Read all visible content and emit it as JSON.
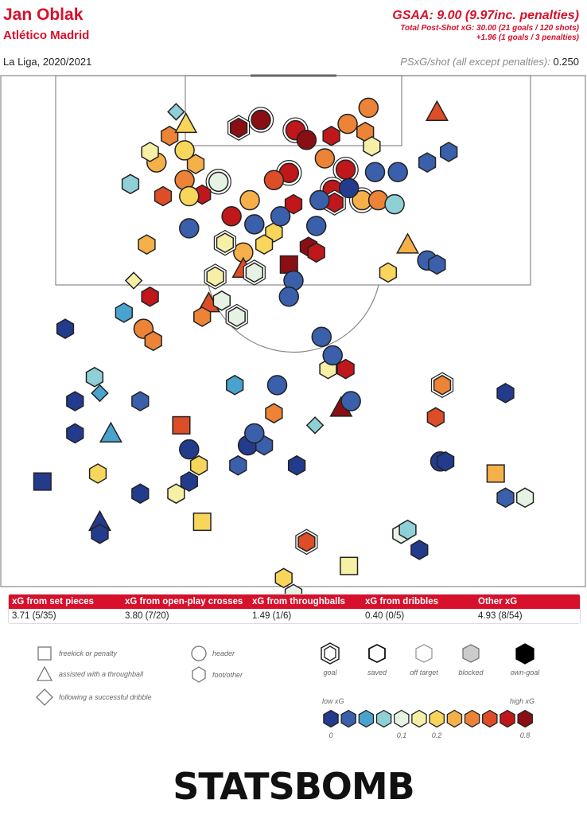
{
  "header": {
    "player": "Jan Oblak",
    "team": "Atlético Madrid",
    "competition": "La Liga, 2020/2021",
    "gsaa": "GSAA: 9.00 (9.97inc. penalties)",
    "psxg_total_line1": "Total Post-Shot xG: 30.00 (21 goals / 120 shots)",
    "psxg_total_line2": "+1.96 (1 goals / 3 penalties)",
    "psxg_per_shot_label": "PSxG/shot (all except penalties):",
    "psxg_per_shot_value": "0.250"
  },
  "xg_table": {
    "headers": [
      "xG from set pieces",
      "xG from open-play crosses",
      "xG from throughballs",
      "xG from dribbles",
      "Other xG"
    ],
    "values": [
      "3.71 (5/35)",
      "3.80 (7/20)",
      "1.49 (1/6)",
      "0.40 (0/5)",
      "4.93 (8/54)"
    ]
  },
  "legend": {
    "shapes": [
      {
        "icon": "square",
        "label": "freekick or penalty"
      },
      {
        "icon": "triangle",
        "label": "assisted with a throughball"
      },
      {
        "icon": "diamond",
        "label": "following a successful dribble"
      },
      {
        "icon": "circle",
        "label": "header"
      },
      {
        "icon": "hexagon",
        "label": "foot/other"
      }
    ],
    "outcomes": [
      "goal",
      "saved",
      "off target",
      "blocked",
      "own-goal"
    ],
    "xg_low": "low xG",
    "xg_high": "high xG",
    "xg_ticks": [
      "0",
      "0.1",
      "0.2",
      "0.8"
    ],
    "colorscale": [
      "#233b8c",
      "#3a5fab",
      "#4aa3cf",
      "#8fd0d6",
      "#e6f3e4",
      "#f6f0a6",
      "#f8d65c",
      "#f6b04a",
      "#ec8336",
      "#dc4d28",
      "#c0171a",
      "#8a0f14"
    ]
  },
  "logo": {
    "text": "STATSBOMB"
  },
  "chart_data": {
    "type": "scatter",
    "title": "",
    "description_units": "shot location in pitch metres (x: 0-80 across goal, y: distance from goal line); value = xG",
    "shots": [
      {
        "x": 40.0,
        "y": 5.5,
        "xg": 0.78,
        "shape": "circle",
        "outcome": "goal"
      },
      {
        "x": 36.6,
        "y": 6.5,
        "xg": 0.82,
        "shape": "hexagon",
        "outcome": "goal"
      },
      {
        "x": 45.3,
        "y": 6.8,
        "xg": 0.7,
        "shape": "circle",
        "outcome": "goal"
      },
      {
        "x": 47.0,
        "y": 8.0,
        "xg": 0.75,
        "shape": "circle",
        "outcome": "saved"
      },
      {
        "x": 50.8,
        "y": 7.5,
        "xg": 0.65,
        "shape": "hexagon",
        "outcome": "saved"
      },
      {
        "x": 53.3,
        "y": 6.0,
        "xg": 0.45,
        "shape": "circle",
        "outcome": "saved"
      },
      {
        "x": 49.8,
        "y": 10.3,
        "xg": 0.35,
        "shape": "circle",
        "outcome": "saved"
      },
      {
        "x": 53.0,
        "y": 11.7,
        "xg": 0.7,
        "shape": "circle",
        "outcome": "goal"
      },
      {
        "x": 44.3,
        "y": 12.1,
        "xg": 0.72,
        "shape": "circle",
        "outcome": "goal"
      },
      {
        "x": 51.0,
        "y": 14.2,
        "xg": 0.7,
        "shape": "circle",
        "outcome": "goal"
      },
      {
        "x": 47.3,
        "y": 21.3,
        "xg": 0.74,
        "shape": "hexagon",
        "outcome": "saved"
      },
      {
        "x": 51.3,
        "y": 15.8,
        "xg": 0.72,
        "shape": "hexagon",
        "outcome": "goal"
      },
      {
        "x": 45.0,
        "y": 16.0,
        "xg": 0.7,
        "shape": "hexagon",
        "outcome": "saved"
      },
      {
        "x": 44.3,
        "y": 23.5,
        "xg": 0.8,
        "shape": "square",
        "outcome": "saved"
      },
      {
        "x": 48.5,
        "y": 22.0,
        "xg": 0.72,
        "shape": "hexagon",
        "outcome": "saved"
      },
      {
        "x": 35.5,
        "y": 17.5,
        "xg": 0.7,
        "shape": "circle",
        "outcome": "saved"
      },
      {
        "x": 33.5,
        "y": 13.2,
        "xg": 0.1,
        "shape": "circle",
        "outcome": "goal"
      },
      {
        "x": 37.3,
        "y": 22.0,
        "xg": 0.25,
        "shape": "circle",
        "outcome": "saved"
      },
      {
        "x": 38.3,
        "y": 15.5,
        "xg": 0.3,
        "shape": "circle",
        "outcome": "saved"
      },
      {
        "x": 31.0,
        "y": 14.8,
        "xg": 0.65,
        "shape": "hexagon",
        "outcome": "saved"
      },
      {
        "x": 30.0,
        "y": 11.0,
        "xg": 0.28,
        "shape": "hexagon",
        "outcome": "saved"
      },
      {
        "x": 28.3,
        "y": 9.3,
        "xg": 0.2,
        "shape": "circle",
        "outcome": "saved"
      },
      {
        "x": 26.0,
        "y": 7.5,
        "xg": 0.45,
        "shape": "hexagon",
        "outcome": "saved"
      },
      {
        "x": 28.5,
        "y": 6.0,
        "xg": 0.15,
        "shape": "triangle",
        "outcome": "saved"
      },
      {
        "x": 27.0,
        "y": 4.5,
        "xg": 0.08,
        "shape": "diamond",
        "outcome": "saved"
      },
      {
        "x": 56.5,
        "y": 4.0,
        "xg": 0.4,
        "shape": "circle",
        "outcome": "saved"
      },
      {
        "x": 56.0,
        "y": 7.0,
        "xg": 0.4,
        "shape": "hexagon",
        "outcome": "saved"
      },
      {
        "x": 57.0,
        "y": 8.8,
        "xg": 0.12,
        "shape": "hexagon",
        "outcome": "saved"
      },
      {
        "x": 55.5,
        "y": 15.5,
        "xg": 0.22,
        "shape": "circle",
        "outcome": "goal"
      },
      {
        "x": 53.5,
        "y": 14.0,
        "xg": 0.02,
        "shape": "circle",
        "outcome": "saved"
      },
      {
        "x": 49.0,
        "y": 15.5,
        "xg": 0.04,
        "shape": "circle",
        "outcome": "saved"
      },
      {
        "x": 57.5,
        "y": 12.0,
        "xg": 0.04,
        "shape": "circle",
        "outcome": "saved"
      },
      {
        "x": 42.0,
        "y": 19.5,
        "xg": 0.15,
        "shape": "hexagon",
        "outcome": "saved"
      },
      {
        "x": 40.5,
        "y": 21.0,
        "xg": 0.2,
        "shape": "hexagon",
        "outcome": "saved"
      },
      {
        "x": 34.5,
        "y": 20.8,
        "xg": 0.12,
        "shape": "hexagon",
        "outcome": "goal"
      },
      {
        "x": 37.3,
        "y": 24.0,
        "xg": 0.5,
        "shape": "triangle",
        "outcome": "saved"
      },
      {
        "x": 39.0,
        "y": 24.5,
        "xg": 0.1,
        "shape": "hexagon",
        "outcome": "goal"
      },
      {
        "x": 29.0,
        "y": 19.0,
        "xg": 0.03,
        "shape": "circle",
        "outcome": "saved"
      },
      {
        "x": 39.0,
        "y": 18.5,
        "xg": 0.04,
        "shape": "circle",
        "outcome": "saved"
      },
      {
        "x": 43.0,
        "y": 17.5,
        "xg": 0.04,
        "shape": "circle",
        "outcome": "saved"
      },
      {
        "x": 45.0,
        "y": 25.5,
        "xg": 0.04,
        "shape": "circle",
        "outcome": "saved"
      },
      {
        "x": 48.5,
        "y": 18.7,
        "xg": 0.04,
        "shape": "circle",
        "outcome": "saved"
      },
      {
        "x": 42.0,
        "y": 13.0,
        "xg": 0.55,
        "shape": "circle",
        "outcome": "saved"
      },
      {
        "x": 24.0,
        "y": 10.8,
        "xg": 0.3,
        "shape": "circle",
        "outcome": "saved"
      },
      {
        "x": 23.0,
        "y": 9.5,
        "xg": 0.12,
        "shape": "hexagon",
        "outcome": "saved"
      },
      {
        "x": 22.5,
        "y": 21.0,
        "xg": 0.3,
        "shape": "hexagon",
        "outcome": "saved"
      },
      {
        "x": 20.5,
        "y": 25.5,
        "xg": 0.12,
        "shape": "diamond",
        "outcome": "saved"
      },
      {
        "x": 23.0,
        "y": 27.5,
        "xg": 0.7,
        "shape": "hexagon",
        "outcome": "saved"
      },
      {
        "x": 28.3,
        "y": 13.0,
        "xg": 0.45,
        "shape": "circle",
        "outcome": "saved"
      },
      {
        "x": 32.0,
        "y": 28.3,
        "xg": 0.6,
        "shape": "triangle",
        "outcome": "saved"
      },
      {
        "x": 31.0,
        "y": 30.0,
        "xg": 0.32,
        "shape": "hexagon",
        "outcome": "saved"
      },
      {
        "x": 36.3,
        "y": 30.0,
        "xg": 0.09,
        "shape": "hexagon",
        "outcome": "goal"
      },
      {
        "x": 34.0,
        "y": 28.0,
        "xg": 0.1,
        "shape": "hexagon",
        "outcome": "saved"
      },
      {
        "x": 33.0,
        "y": 25.0,
        "xg": 0.12,
        "shape": "hexagon",
        "outcome": "goal"
      },
      {
        "x": 36.0,
        "y": 38.5,
        "xg": 0.05,
        "shape": "hexagon",
        "outcome": "saved"
      },
      {
        "x": 42.5,
        "y": 38.5,
        "xg": 0.03,
        "shape": "circle",
        "outcome": "saved"
      },
      {
        "x": 44.3,
        "y": 27.5,
        "xg": 0.04,
        "shape": "circle",
        "outcome": "saved"
      },
      {
        "x": 49.3,
        "y": 32.5,
        "xg": 0.04,
        "shape": "circle",
        "outcome": "saved"
      },
      {
        "x": 50.3,
        "y": 36.5,
        "xg": 0.12,
        "shape": "hexagon",
        "outcome": "saved"
      },
      {
        "x": 51.0,
        "y": 34.8,
        "xg": 0.04,
        "shape": "circle",
        "outcome": "saved"
      },
      {
        "x": 53.0,
        "y": 36.5,
        "xg": 0.7,
        "shape": "hexagon",
        "outcome": "saved"
      },
      {
        "x": 52.3,
        "y": 41.3,
        "xg": 0.75,
        "shape": "triangle",
        "outcome": "saved"
      },
      {
        "x": 53.8,
        "y": 40.5,
        "xg": 0.04,
        "shape": "circle",
        "outcome": "saved"
      },
      {
        "x": 48.3,
        "y": 43.5,
        "xg": 0.08,
        "shape": "diamond",
        "outcome": "saved"
      },
      {
        "x": 58.0,
        "y": 15.5,
        "xg": 0.4,
        "shape": "circle",
        "outcome": "saved"
      },
      {
        "x": 59.5,
        "y": 24.5,
        "xg": 0.15,
        "shape": "hexagon",
        "outcome": "saved"
      },
      {
        "x": 62.5,
        "y": 21.0,
        "xg": 0.3,
        "shape": "triangle",
        "outcome": "saved"
      },
      {
        "x": 61.0,
        "y": 12.0,
        "xg": 0.04,
        "shape": "circle",
        "outcome": "saved"
      },
      {
        "x": 60.5,
        "y": 16.0,
        "xg": 0.07,
        "shape": "circle",
        "outcome": "saved"
      },
      {
        "x": 65.5,
        "y": 10.8,
        "xg": 0.04,
        "shape": "hexagon",
        "outcome": "saved"
      },
      {
        "x": 68.8,
        "y": 9.5,
        "xg": 0.04,
        "shape": "hexagon",
        "outcome": "saved"
      },
      {
        "x": 65.5,
        "y": 23.0,
        "xg": 0.04,
        "shape": "circle",
        "outcome": "saved"
      },
      {
        "x": 67.0,
        "y": 23.5,
        "xg": 0.04,
        "shape": "hexagon",
        "outcome": "saved"
      },
      {
        "x": 67.0,
        "y": 4.5,
        "xg": 0.6,
        "shape": "triangle",
        "outcome": "saved"
      },
      {
        "x": 67.8,
        "y": 38.5,
        "xg": 0.4,
        "shape": "hexagon",
        "outcome": "goal"
      },
      {
        "x": 66.8,
        "y": 42.5,
        "xg": 0.55,
        "shape": "hexagon",
        "outcome": "saved"
      },
      {
        "x": 77.5,
        "y": 39.5,
        "xg": 0.02,
        "shape": "hexagon",
        "outcome": "saved"
      },
      {
        "x": 67.5,
        "y": 48.0,
        "xg": 0.02,
        "shape": "circle",
        "outcome": "saved"
      },
      {
        "x": 68.3,
        "y": 48.0,
        "xg": 0.02,
        "shape": "hexagon",
        "outcome": "saved"
      },
      {
        "x": 76.0,
        "y": 49.5,
        "xg": 0.3,
        "shape": "square",
        "outcome": "saved"
      },
      {
        "x": 77.5,
        "y": 52.5,
        "xg": 0.04,
        "shape": "hexagon",
        "outcome": "saved"
      },
      {
        "x": 80.5,
        "y": 52.5,
        "xg": 0.09,
        "shape": "hexagon",
        "outcome": "saved"
      },
      {
        "x": 20.0,
        "y": 13.5,
        "xg": 0.08,
        "shape": "hexagon",
        "outcome": "saved"
      },
      {
        "x": 25.0,
        "y": 15.0,
        "xg": 0.55,
        "shape": "hexagon",
        "outcome": "saved"
      },
      {
        "x": 29.0,
        "y": 15.0,
        "xg": 0.2,
        "shape": "circle",
        "outcome": "saved"
      },
      {
        "x": 19.0,
        "y": 29.5,
        "xg": 0.05,
        "shape": "hexagon",
        "outcome": "saved"
      },
      {
        "x": 22.0,
        "y": 31.5,
        "xg": 0.45,
        "shape": "circle",
        "outcome": "saved"
      },
      {
        "x": 23.5,
        "y": 33.0,
        "xg": 0.45,
        "shape": "hexagon",
        "outcome": "saved"
      },
      {
        "x": 10.0,
        "y": 31.5,
        "xg": 0.01,
        "shape": "hexagon",
        "outcome": "saved"
      },
      {
        "x": 14.5,
        "y": 37.5,
        "xg": 0.08,
        "shape": "hexagon",
        "outcome": "saved"
      },
      {
        "x": 15.3,
        "y": 39.5,
        "xg": 0.05,
        "shape": "diamond",
        "outcome": "saved"
      },
      {
        "x": 11.5,
        "y": 40.5,
        "xg": 0.02,
        "shape": "hexagon",
        "outcome": "saved"
      },
      {
        "x": 11.5,
        "y": 44.5,
        "xg": 0.02,
        "shape": "hexagon",
        "outcome": "saved"
      },
      {
        "x": 17.0,
        "y": 44.5,
        "xg": 0.06,
        "shape": "triangle",
        "outcome": "saved"
      },
      {
        "x": 21.5,
        "y": 40.5,
        "xg": 0.04,
        "shape": "hexagon",
        "outcome": "saved"
      },
      {
        "x": 27.8,
        "y": 43.5,
        "xg": 0.5,
        "shape": "square",
        "outcome": "saved"
      },
      {
        "x": 29.0,
        "y": 46.5,
        "xg": 0.02,
        "shape": "circle",
        "outcome": "saved"
      },
      {
        "x": 30.5,
        "y": 48.5,
        "xg": 0.15,
        "shape": "hexagon",
        "outcome": "saved"
      },
      {
        "x": 15.0,
        "y": 49.5,
        "xg": 0.15,
        "shape": "hexagon",
        "outcome": "saved"
      },
      {
        "x": 6.5,
        "y": 50.5,
        "xg": 0.01,
        "shape": "square",
        "outcome": "saved"
      },
      {
        "x": 21.5,
        "y": 52.0,
        "xg": 0.02,
        "shape": "hexagon",
        "outcome": "saved"
      },
      {
        "x": 29.0,
        "y": 50.5,
        "xg": 0.02,
        "shape": "hexagon",
        "outcome": "saved"
      },
      {
        "x": 27.0,
        "y": 52.0,
        "xg": 0.14,
        "shape": "hexagon",
        "outcome": "saved"
      },
      {
        "x": 31.0,
        "y": 55.5,
        "xg": 0.15,
        "shape": "square",
        "outcome": "saved"
      },
      {
        "x": 36.5,
        "y": 48.5,
        "xg": 0.04,
        "shape": "hexagon",
        "outcome": "saved"
      },
      {
        "x": 38.0,
        "y": 46.0,
        "xg": 0.02,
        "shape": "circle",
        "outcome": "saved"
      },
      {
        "x": 40.5,
        "y": 46.0,
        "xg": 0.04,
        "shape": "hexagon",
        "outcome": "saved"
      },
      {
        "x": 45.5,
        "y": 48.5,
        "xg": 0.02,
        "shape": "hexagon",
        "outcome": "saved"
      },
      {
        "x": 39.0,
        "y": 44.5,
        "xg": 0.04,
        "shape": "circle",
        "outcome": "saved"
      },
      {
        "x": 42.0,
        "y": 42.0,
        "xg": 0.45,
        "shape": "hexagon",
        "outcome": "saved"
      },
      {
        "x": 15.3,
        "y": 55.5,
        "xg": 0.02,
        "shape": "triangle",
        "outcome": "saved"
      },
      {
        "x": 15.3,
        "y": 57.0,
        "xg": 0.01,
        "shape": "hexagon",
        "outcome": "saved"
      },
      {
        "x": 47.0,
        "y": 58.0,
        "xg": 0.55,
        "shape": "hexagon",
        "outcome": "goal"
      },
      {
        "x": 61.5,
        "y": 57.0,
        "xg": 0.1,
        "shape": "hexagon",
        "outcome": "saved"
      },
      {
        "x": 62.5,
        "y": 56.5,
        "xg": 0.08,
        "shape": "hexagon",
        "outcome": "saved"
      },
      {
        "x": 64.3,
        "y": 59.0,
        "xg": 0.02,
        "shape": "hexagon",
        "outcome": "saved"
      },
      {
        "x": 53.5,
        "y": 61.0,
        "xg": 0.14,
        "shape": "square",
        "outcome": "saved"
      },
      {
        "x": 43.5,
        "y": 62.5,
        "xg": 0.15,
        "shape": "hexagon",
        "outcome": "saved"
      },
      {
        "x": 45.0,
        "y": 64.5,
        "xg": 0.1,
        "shape": "hexagon",
        "outcome": "saved"
      }
    ]
  }
}
